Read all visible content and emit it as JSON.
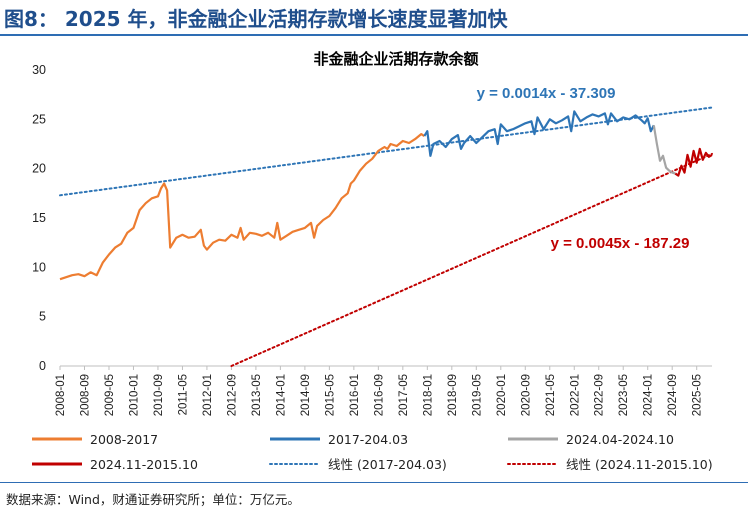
{
  "figure_title": "图8： 2025 年，非金融企业活期存款增长速度显著加快",
  "source_note": "数据来源：Wind，财通证券研究所；单位：万亿元。",
  "chart_data": {
    "type": "line",
    "title": "非金融企业活期存款余额",
    "xlabel": "",
    "ylabel": "",
    "ylim": [
      0,
      30
    ],
    "yticks": [
      0,
      5,
      10,
      15,
      20,
      25,
      30
    ],
    "grid": false,
    "legend_position": "bottom",
    "x_tick_labels": [
      "2008-01",
      "2008-09",
      "2009-05",
      "2010-01",
      "2010-09",
      "2011-05",
      "2012-01",
      "2012-09",
      "2013-05",
      "2014-01",
      "2014-09",
      "2015-05",
      "2016-01",
      "2016-09",
      "2017-05",
      "2018-01",
      "2018-09",
      "2019-05",
      "2020-01",
      "2020-09",
      "2021-05",
      "2022-01",
      "2022-09",
      "2023-05",
      "2024-01",
      "2024-09",
      "2025-05"
    ],
    "colors": {
      "s2008": "#ed7d31",
      "s2017": "#2e75b6",
      "s2024a": "#a5a5a5",
      "s2024b": "#c00000",
      "trend1": "#2e75b6",
      "trend2": "#c00000"
    },
    "series": [
      {
        "name": "2008-2017",
        "key": "s2008",
        "x": [
          "2008-01",
          "2008-03",
          "2008-05",
          "2008-07",
          "2008-09",
          "2008-11",
          "2009-01",
          "2009-03",
          "2009-05",
          "2009-07",
          "2009-09",
          "2009-11",
          "2010-01",
          "2010-03",
          "2010-05",
          "2010-07",
          "2010-09",
          "2010-10",
          "2010-11",
          "2010-12",
          "2011-01",
          "2011-03",
          "2011-05",
          "2011-07",
          "2011-09",
          "2011-11",
          "2011-12",
          "2012-01",
          "2012-03",
          "2012-05",
          "2012-07",
          "2012-09",
          "2012-11",
          "2012-12",
          "2013-01",
          "2013-03",
          "2013-05",
          "2013-07",
          "2013-09",
          "2013-11",
          "2013-12",
          "2014-01",
          "2014-03",
          "2014-05",
          "2014-07",
          "2014-09",
          "2014-11",
          "2014-12",
          "2015-01",
          "2015-03",
          "2015-05",
          "2015-07",
          "2015-09",
          "2015-11",
          "2015-12",
          "2016-01",
          "2016-03",
          "2016-05",
          "2016-07",
          "2016-09",
          "2016-11",
          "2016-12",
          "2017-01",
          "2017-03",
          "2017-05",
          "2017-07",
          "2017-09",
          "2017-11",
          "2017-12"
        ],
        "values": [
          8.8,
          9.0,
          9.2,
          9.3,
          9.1,
          9.5,
          9.2,
          10.5,
          11.3,
          12.0,
          12.4,
          13.5,
          14.0,
          15.8,
          16.5,
          17.0,
          17.2,
          18.0,
          18.5,
          17.8,
          12.0,
          13.0,
          13.3,
          13.0,
          13.1,
          13.8,
          12.2,
          11.8,
          12.5,
          12.8,
          12.7,
          13.3,
          13.0,
          14.0,
          12.8,
          13.5,
          13.4,
          13.2,
          13.5,
          13.0,
          14.5,
          12.8,
          13.2,
          13.6,
          13.8,
          14.0,
          14.5,
          13.0,
          14.2,
          14.8,
          15.2,
          16.0,
          17.0,
          17.5,
          18.5,
          18.8,
          19.8,
          20.5,
          21.0,
          21.8,
          22.2,
          22.0,
          22.5,
          22.3,
          22.8,
          22.6,
          23.0,
          23.5,
          23.3
        ]
      },
      {
        "name": "2017-204.03",
        "key": "s2017",
        "x": [
          "2017-12",
          "2018-01",
          "2018-02",
          "2018-03",
          "2018-05",
          "2018-07",
          "2018-09",
          "2018-11",
          "2018-12",
          "2019-01",
          "2019-03",
          "2019-05",
          "2019-07",
          "2019-09",
          "2019-11",
          "2019-12",
          "2020-01",
          "2020-03",
          "2020-05",
          "2020-07",
          "2020-09",
          "2020-11",
          "2020-12",
          "2021-01",
          "2021-03",
          "2021-05",
          "2021-07",
          "2021-09",
          "2021-11",
          "2021-12",
          "2022-01",
          "2022-03",
          "2022-05",
          "2022-07",
          "2022-09",
          "2022-11",
          "2022-12",
          "2023-01",
          "2023-03",
          "2023-05",
          "2023-07",
          "2023-09",
          "2023-11",
          "2023-12",
          "2024-01",
          "2024-02",
          "2024-03"
        ],
        "values": [
          23.3,
          23.8,
          21.3,
          22.5,
          22.8,
          22.2,
          23.0,
          23.4,
          22.0,
          22.6,
          23.3,
          22.6,
          23.2,
          23.8,
          24.0,
          22.5,
          24.5,
          23.8,
          24.0,
          24.3,
          24.6,
          24.8,
          23.5,
          25.2,
          24.0,
          25.0,
          24.6,
          24.9,
          25.3,
          23.8,
          25.8,
          24.8,
          25.2,
          25.5,
          25.3,
          25.6,
          24.5,
          25.6,
          24.8,
          25.2,
          25.0,
          25.4,
          24.9,
          24.6,
          25.1,
          23.8,
          24.4
        ]
      },
      {
        "name": "2024.04-2024.10",
        "key": "s2024a",
        "x": [
          "2024-03",
          "2024-04",
          "2024-05",
          "2024-06",
          "2024-07",
          "2024-08",
          "2024-09",
          "2024-10"
        ],
        "values": [
          24.4,
          22.5,
          20.8,
          21.3,
          20.1,
          19.8,
          19.6,
          19.5
        ]
      },
      {
        "name": "2024.11-2015.10",
        "key": "s2024b",
        "x": [
          "2024-10",
          "2024-11",
          "2024-12",
          "2025-01",
          "2025-02",
          "2025-03",
          "2025-04",
          "2025-05",
          "2025-06",
          "2025-07",
          "2025-08",
          "2025-09",
          "2025-10"
        ],
        "values": [
          19.5,
          19.3,
          20.3,
          19.6,
          21.4,
          20.2,
          21.8,
          20.6,
          22.0,
          20.9,
          21.6,
          21.2,
          21.4
        ]
      }
    ],
    "trendlines": [
      {
        "name": "线性 (2017-204.03)",
        "key": "trend1",
        "equation": "y = 0.0014x - 37.309",
        "from": {
          "x": "2008-01",
          "y": 17.3
        },
        "to": {
          "x": "2025-10",
          "y": 26.2
        }
      },
      {
        "name": "线性 (2024.11-2015.10)",
        "key": "trend2",
        "equation": "y = 0.0045x - 187.29",
        "from": {
          "x": "2012-09",
          "y": 0.0
        },
        "to": {
          "x": "2025-10",
          "y": 21.5
        }
      }
    ]
  }
}
